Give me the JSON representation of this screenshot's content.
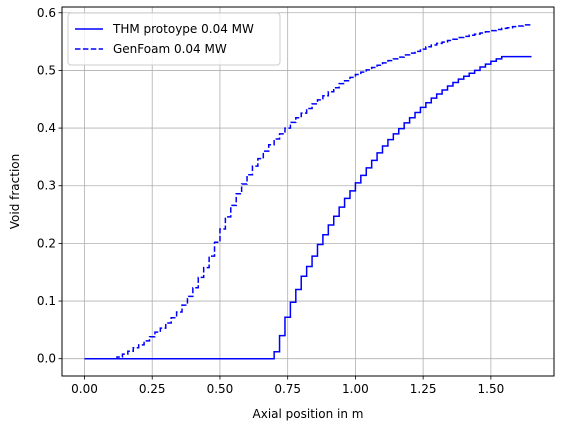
{
  "chart_data": {
    "type": "line",
    "title": "",
    "xlabel": "Axial position in m",
    "ylabel": "Void fraction",
    "xlim": [
      -0.083,
      1.733
    ],
    "ylim": [
      -0.03,
      0.61
    ],
    "xticks": [
      0.0,
      0.25,
      0.5,
      0.75,
      1.0,
      1.25,
      1.5
    ],
    "xtick_labels": [
      "0.00",
      "0.25",
      "0.50",
      "0.75",
      "1.00",
      "1.25",
      "1.50"
    ],
    "yticks": [
      0.0,
      0.1,
      0.2,
      0.3,
      0.4,
      0.5,
      0.6
    ],
    "ytick_labels": [
      "0.0",
      "0.1",
      "0.2",
      "0.3",
      "0.4",
      "0.5",
      "0.6"
    ],
    "grid": true,
    "legend_position": "top-left",
    "series": [
      {
        "name": "THM protoype 0.04 MW",
        "color": "#0000ff",
        "style": "solid",
        "step": "post",
        "x": [
          0.0,
          0.7,
          0.72,
          0.74,
          0.76,
          0.78,
          0.8,
          0.82,
          0.84,
          0.86,
          0.88,
          0.9,
          0.92,
          0.94,
          0.96,
          0.98,
          1.0,
          1.02,
          1.04,
          1.06,
          1.08,
          1.1,
          1.12,
          1.14,
          1.16,
          1.18,
          1.2,
          1.22,
          1.24,
          1.26,
          1.28,
          1.3,
          1.32,
          1.34,
          1.36,
          1.38,
          1.4,
          1.42,
          1.44,
          1.46,
          1.48,
          1.5,
          1.52,
          1.54,
          1.56,
          1.58,
          1.6,
          1.62,
          1.64,
          1.65
        ],
        "y": [
          0.0,
          0.012,
          0.04,
          0.072,
          0.098,
          0.12,
          0.143,
          0.16,
          0.178,
          0.198,
          0.215,
          0.232,
          0.247,
          0.263,
          0.278,
          0.291,
          0.305,
          0.318,
          0.331,
          0.344,
          0.357,
          0.369,
          0.38,
          0.39,
          0.399,
          0.409,
          0.418,
          0.427,
          0.436,
          0.444,
          0.452,
          0.459,
          0.466,
          0.473,
          0.479,
          0.485,
          0.49,
          0.495,
          0.5,
          0.506,
          0.511,
          0.516,
          0.52,
          0.524,
          0.524,
          0.524,
          0.524,
          0.524,
          0.524,
          0.524
        ]
      },
      {
        "name": "GenFoam 0.04 MW",
        "color": "#0000ff",
        "style": "dashed",
        "step": "post",
        "x": [
          0.0,
          0.12,
          0.14,
          0.16,
          0.18,
          0.2,
          0.22,
          0.24,
          0.26,
          0.28,
          0.3,
          0.32,
          0.34,
          0.36,
          0.38,
          0.4,
          0.42,
          0.44,
          0.46,
          0.48,
          0.5,
          0.52,
          0.54,
          0.56,
          0.58,
          0.6,
          0.62,
          0.64,
          0.66,
          0.68,
          0.7,
          0.72,
          0.74,
          0.76,
          0.78,
          0.8,
          0.82,
          0.84,
          0.86,
          0.88,
          0.9,
          0.92,
          0.94,
          0.96,
          0.98,
          1.0,
          1.02,
          1.04,
          1.06,
          1.08,
          1.1,
          1.12,
          1.14,
          1.16,
          1.18,
          1.2,
          1.22,
          1.24,
          1.26,
          1.28,
          1.3,
          1.32,
          1.34,
          1.36,
          1.38,
          1.4,
          1.42,
          1.44,
          1.46,
          1.48,
          1.5,
          1.52,
          1.54,
          1.56,
          1.58,
          1.6,
          1.62,
          1.65
        ],
        "y": [
          0.0,
          0.003,
          0.008,
          0.013,
          0.019,
          0.024,
          0.031,
          0.038,
          0.046,
          0.053,
          0.062,
          0.071,
          0.081,
          0.093,
          0.108,
          0.123,
          0.141,
          0.158,
          0.178,
          0.202,
          0.225,
          0.246,
          0.266,
          0.286,
          0.303,
          0.319,
          0.334,
          0.347,
          0.36,
          0.371,
          0.381,
          0.39,
          0.4,
          0.41,
          0.418,
          0.426,
          0.434,
          0.442,
          0.449,
          0.456,
          0.463,
          0.47,
          0.477,
          0.482,
          0.488,
          0.493,
          0.497,
          0.501,
          0.505,
          0.509,
          0.513,
          0.517,
          0.52,
          0.523,
          0.527,
          0.53,
          0.533,
          0.537,
          0.541,
          0.544,
          0.547,
          0.549,
          0.552,
          0.554,
          0.557,
          0.559,
          0.561,
          0.563,
          0.565,
          0.567,
          0.569,
          0.571,
          0.573,
          0.574,
          0.576,
          0.577,
          0.579,
          0.581
        ]
      }
    ]
  }
}
